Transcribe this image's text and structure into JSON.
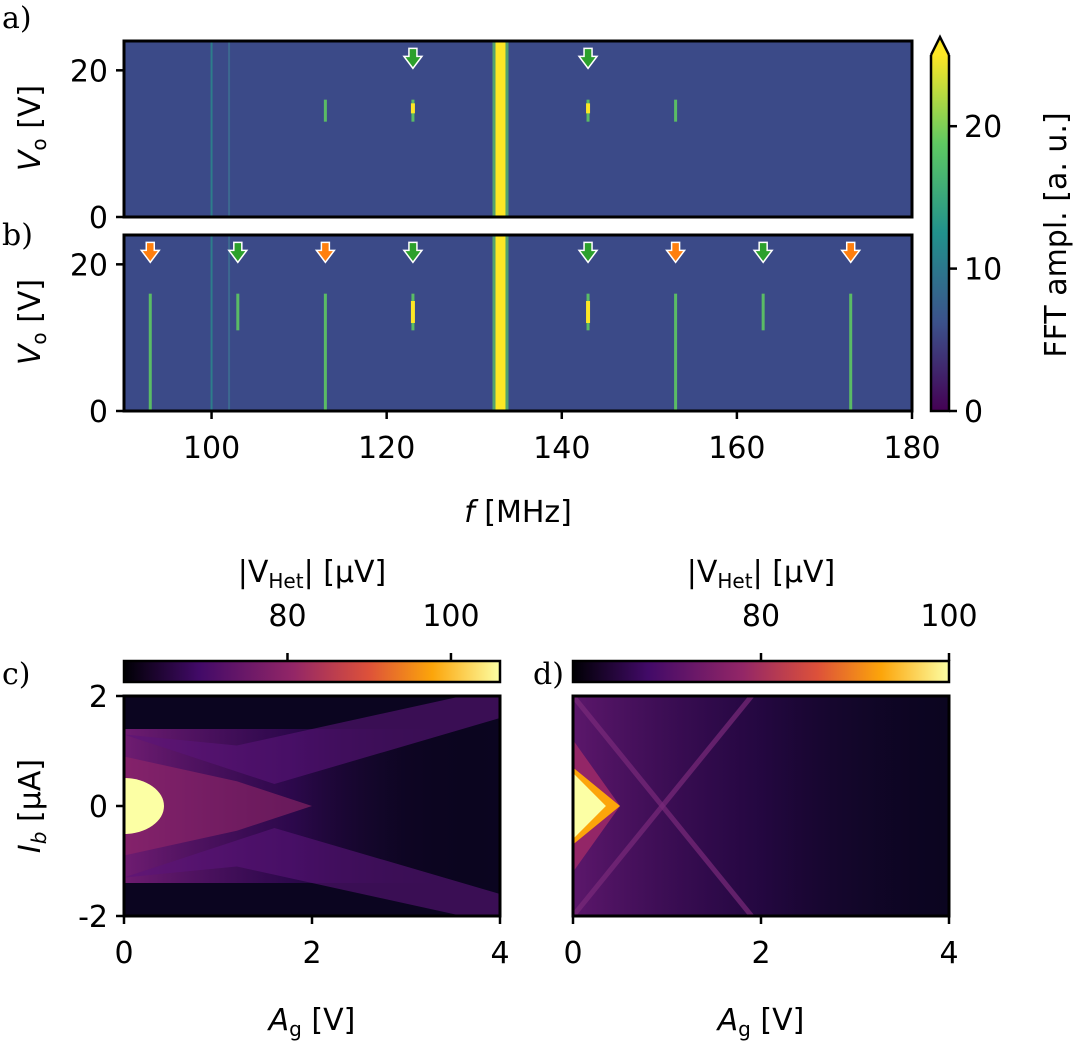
{
  "colors": {
    "viridis": [
      "#440154",
      "#3b528b",
      "#21918c",
      "#5ec962",
      "#fde725"
    ],
    "inferno": [
      "#000004",
      "#420a68",
      "#932667",
      "#dd513a",
      "#fca50a",
      "#fcffa4"
    ],
    "arrow_green": "#2ca02c",
    "arrow_orange": "#ff7f0e",
    "background_bin": "#3b4a88"
  },
  "chart_data": [
    {
      "panel": "a)",
      "type": "heatmap",
      "xlabel_symbol": "f",
      "xlabel_unit": "[MHz]",
      "ylabel_symbol": "V",
      "ylabel_sub": "o",
      "ylabel_unit": "[V]",
      "xlim": [
        90,
        180
      ],
      "ylim": [
        0,
        24
      ],
      "xticks": [
        100,
        120,
        140,
        160,
        180
      ],
      "yticks": [
        0,
        20
      ],
      "main_peak_mhz": 133,
      "side_peaks_mhz": [
        113,
        123,
        143,
        153
      ],
      "faint_lines_mhz": [
        100,
        102
      ],
      "arrows": [
        {
          "f": 123,
          "color": "green"
        },
        {
          "f": 143,
          "color": "green"
        }
      ]
    },
    {
      "panel": "b)",
      "type": "heatmap",
      "xlabel_symbol": "f",
      "xlabel_unit": "[MHz]",
      "ylabel_symbol": "V",
      "ylabel_sub": "o",
      "ylabel_unit": "[V]",
      "xlim": [
        90,
        180
      ],
      "ylim": [
        0,
        24
      ],
      "xticks": [
        100,
        120,
        140,
        160,
        180
      ],
      "yticks": [
        0,
        20
      ],
      "main_peak_mhz": 133,
      "side_peaks_mhz": [
        93,
        103,
        113,
        123,
        143,
        153,
        163,
        173
      ],
      "faint_lines_mhz": [
        100,
        102
      ],
      "arrows": [
        {
          "f": 93,
          "color": "orange"
        },
        {
          "f": 103,
          "color": "green"
        },
        {
          "f": 113,
          "color": "orange"
        },
        {
          "f": 123,
          "color": "green"
        },
        {
          "f": 143,
          "color": "green"
        },
        {
          "f": 153,
          "color": "orange"
        },
        {
          "f": 163,
          "color": "green"
        },
        {
          "f": 173,
          "color": "orange"
        }
      ]
    },
    {
      "panel": "c)",
      "type": "heatmap",
      "xlabel_symbol": "A",
      "xlabel_sub": "g",
      "xlabel_unit": "[V]",
      "ylabel_symbol": "I",
      "ylabel_sub": "b",
      "ylabel_unit": "[μA]",
      "xlim": [
        0,
        4
      ],
      "ylim": [
        -2,
        2
      ],
      "xticks": [
        "0",
        "2",
        "4"
      ],
      "yticks": [
        "2",
        "0",
        "-2"
      ],
      "colorbar": {
        "label_open": "|V",
        "label_sub": "Het",
        "label_close": "| [μV]",
        "range": [
          60,
          106
        ],
        "ticks": [
          "80",
          "100"
        ]
      }
    },
    {
      "panel": "d)",
      "type": "heatmap",
      "xlabel_symbol": "A",
      "xlabel_sub": "g",
      "xlabel_unit": "[V]",
      "xlim": [
        0,
        4
      ],
      "ylim": [
        -2,
        2
      ],
      "xticks": [
        "0",
        "2",
        "4"
      ],
      "colorbar": {
        "label_open": "|V",
        "label_sub": "Het",
        "label_close": "| [μV]",
        "range": [
          60,
          100
        ],
        "ticks": [
          "80",
          "100"
        ]
      }
    }
  ],
  "shared_colorbar": {
    "label": "FFT ampl. [a. u.]",
    "range": [
      0,
      25
    ],
    "ticks": [
      "0",
      "10",
      "20"
    ]
  }
}
